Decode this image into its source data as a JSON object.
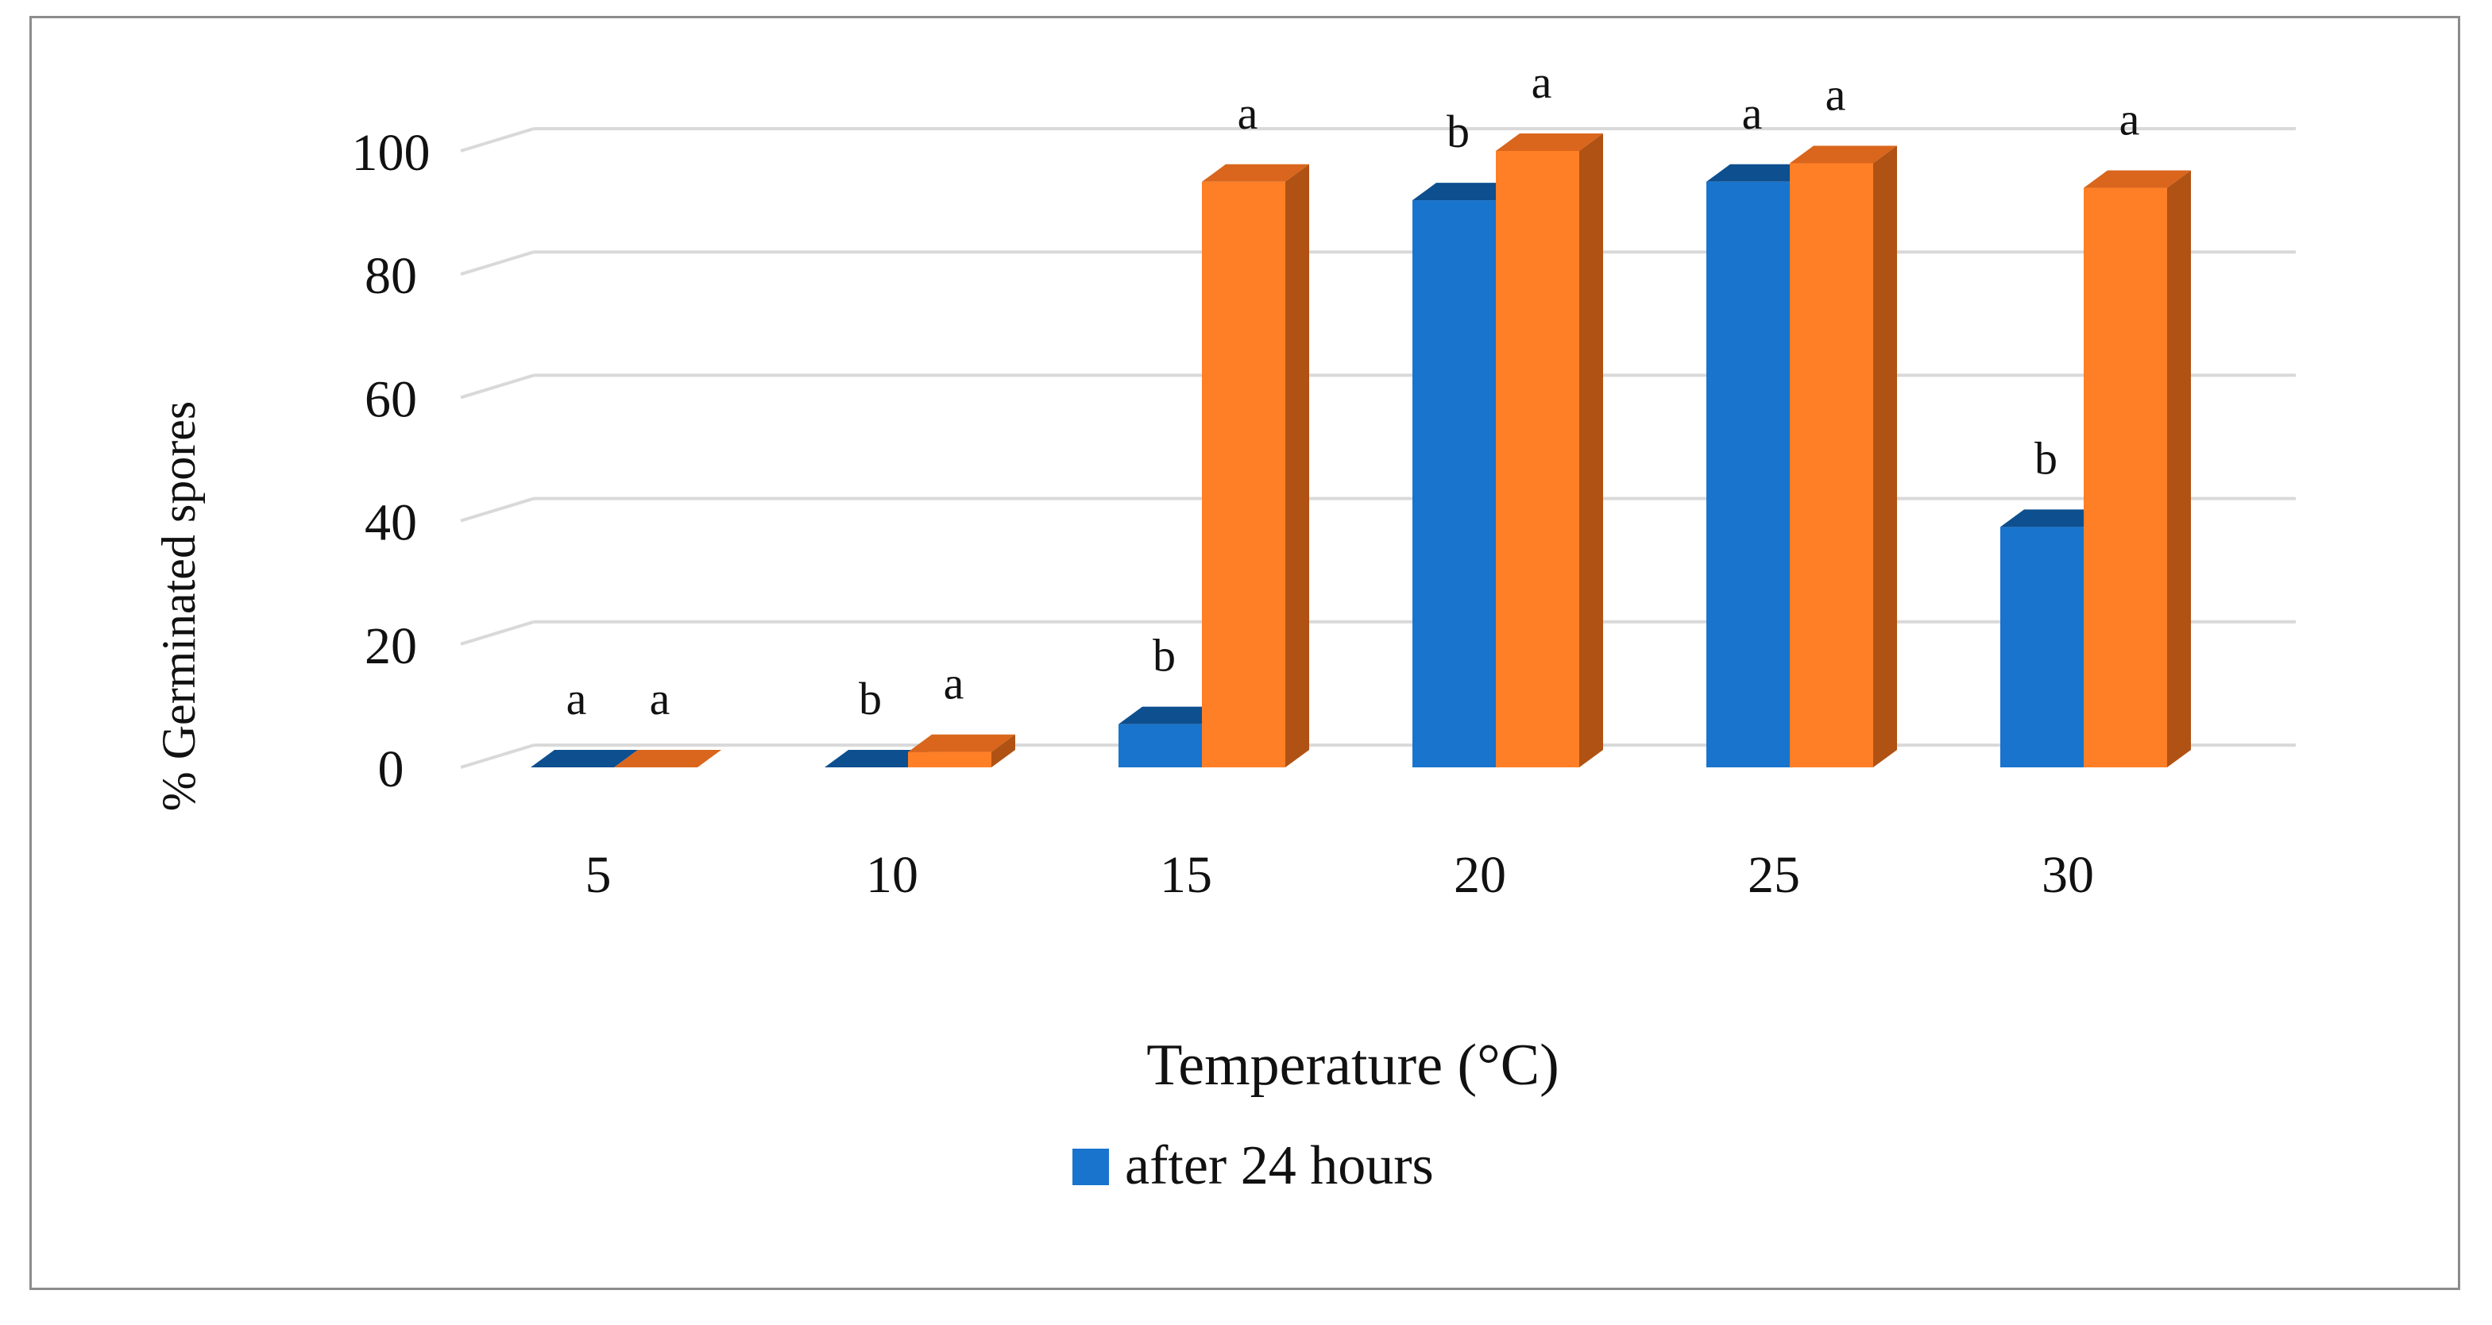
{
  "chart_data": {
    "type": "bar",
    "title": "",
    "xlabel": "Temperature (°C)",
    "ylabel": "% Germinated spores",
    "ylim": [
      0,
      100
    ],
    "yticks": [
      0,
      20,
      40,
      60,
      80,
      100
    ],
    "categories": [
      "5",
      "10",
      "15",
      "20",
      "25",
      "30"
    ],
    "series": [
      {
        "name": "after 24 hours",
        "color": "#1874cd",
        "side_color": "#0f5ca6",
        "top_color": "#0d4f8f",
        "values": [
          0,
          0,
          7,
          92,
          95,
          39
        ],
        "letters": [
          "a",
          "b",
          "b",
          "b",
          "a",
          "b"
        ]
      },
      {
        "name": "",
        "color": "#ff7f27",
        "side_color": "#b05214",
        "top_color": "#d9661c",
        "values": [
          0,
          2.5,
          95,
          100,
          98,
          94
        ],
        "letters": [
          "a",
          "a",
          "a",
          "a",
          "a",
          "a"
        ]
      }
    ],
    "legend": {
      "position": "bottom",
      "entries": [
        "after 24 hours"
      ]
    },
    "grid": true,
    "style": "3d-clustered-column"
  }
}
